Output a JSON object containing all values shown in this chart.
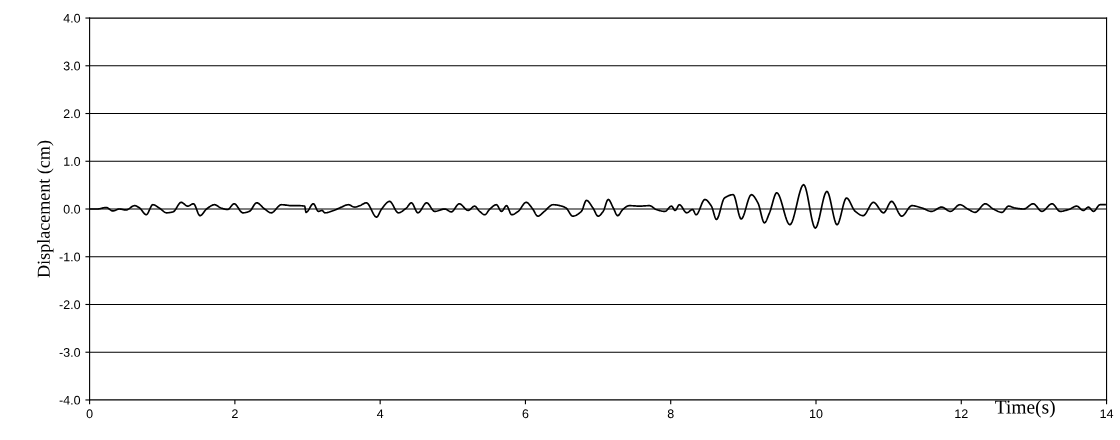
{
  "chart_data": {
    "type": "line",
    "xlabel": "Time(s)",
    "ylabel": "Displacement (cm)",
    "xlim": [
      0,
      14
    ],
    "xticks": [
      0,
      2,
      4,
      6,
      8,
      10,
      12,
      14
    ],
    "ylim": [
      -4,
      4
    ],
    "yticks": [
      {
        "value": -4,
        "label": "-4.0"
      },
      {
        "value": -3,
        "label": "-3.0"
      },
      {
        "value": -2,
        "label": "-2.0"
      },
      {
        "value": -1,
        "label": "-1.0"
      },
      {
        "value": 0,
        "label": "0.0"
      },
      {
        "value": 1,
        "label": "1.0"
      },
      {
        "value": 2,
        "label": "2.0"
      },
      {
        "value": 3,
        "label": "3.0"
      },
      {
        "value": 4,
        "label": "4.0"
      }
    ],
    "grid": "y",
    "marker": "none",
    "line_style": "solid",
    "series": [
      {
        "color": "#000000",
        "x": [
          0.0,
          0.1,
          0.23,
          0.32,
          0.41,
          0.5,
          0.62,
          0.69,
          0.78,
          0.87,
          0.96,
          1.06,
          1.15,
          1.26,
          1.35,
          1.43,
          1.52,
          1.61,
          1.72,
          1.81,
          1.9,
          1.99,
          2.11,
          2.2,
          2.3,
          2.41,
          2.5,
          2.64,
          2.78,
          2.87,
          2.96,
          2.98,
          3.08,
          3.15,
          3.2,
          3.24,
          3.36,
          3.47,
          3.56,
          3.65,
          3.72,
          3.81,
          3.95,
          4.02,
          4.13,
          4.25,
          4.36,
          4.43,
          4.52,
          4.64,
          4.75,
          4.89,
          4.98,
          5.09,
          5.21,
          5.3,
          5.37,
          5.44,
          5.51,
          5.6,
          5.67,
          5.74,
          5.81,
          5.9,
          6.01,
          6.1,
          6.17,
          6.26,
          6.38,
          6.5,
          6.56,
          6.65,
          6.77,
          6.84,
          6.93,
          7.0,
          7.07,
          7.14,
          7.21,
          7.27,
          7.34,
          7.43,
          7.57,
          7.71,
          7.8,
          7.92,
          8.01,
          8.06,
          8.12,
          8.22,
          8.3,
          8.35,
          8.47,
          8.56,
          8.63,
          8.74,
          8.86,
          8.97,
          9.11,
          9.2,
          9.29,
          9.36,
          9.46,
          9.64,
          9.83,
          9.99,
          10.15,
          10.29,
          10.42,
          10.54,
          10.65,
          10.79,
          10.93,
          11.04,
          11.18,
          11.32,
          11.46,
          11.59,
          11.73,
          11.85,
          11.98,
          12.1,
          12.19,
          12.33,
          12.44,
          12.56,
          12.65,
          12.74,
          12.86,
          12.99,
          13.11,
          13.25,
          13.36,
          13.48,
          13.59,
          13.68,
          13.75,
          13.82,
          13.91,
          13.98
        ],
        "values": [
          0.0,
          0.0,
          0.03,
          -0.04,
          0.0,
          -0.02,
          0.07,
          0.02,
          -0.12,
          0.09,
          0.02,
          -0.08,
          -0.06,
          0.14,
          0.06,
          0.11,
          -0.14,
          0.0,
          0.09,
          0.02,
          -0.01,
          0.11,
          -0.08,
          -0.05,
          0.13,
          0.0,
          -0.08,
          0.09,
          0.07,
          0.07,
          0.06,
          -0.07,
          0.11,
          -0.05,
          -0.03,
          -0.08,
          -0.03,
          0.04,
          0.09,
          0.04,
          0.07,
          0.13,
          -0.17,
          0.0,
          0.16,
          -0.08,
          0.02,
          0.13,
          -0.08,
          0.13,
          -0.05,
          0.0,
          -0.06,
          0.11,
          -0.03,
          0.06,
          -0.05,
          -0.12,
          0.0,
          0.09,
          -0.05,
          0.07,
          -0.12,
          -0.05,
          0.14,
          0.0,
          -0.15,
          -0.05,
          0.09,
          0.06,
          0.02,
          -0.15,
          -0.05,
          0.18,
          0.02,
          -0.15,
          -0.05,
          0.2,
          0.02,
          -0.14,
          -0.01,
          0.07,
          0.06,
          0.07,
          -0.01,
          -0.05,
          0.06,
          -0.03,
          0.09,
          -0.08,
          -0.01,
          -0.12,
          0.2,
          0.06,
          -0.22,
          0.23,
          0.3,
          -0.21,
          0.3,
          0.13,
          -0.29,
          -0.08,
          0.34,
          -0.33,
          0.51,
          -0.4,
          0.37,
          -0.33,
          0.23,
          -0.05,
          -0.14,
          0.14,
          -0.08,
          0.16,
          -0.15,
          0.07,
          0.02,
          -0.05,
          0.04,
          -0.05,
          0.09,
          -0.01,
          -0.07,
          0.11,
          0.0,
          -0.07,
          0.06,
          0.02,
          0.0,
          0.11,
          -0.05,
          0.11,
          -0.05,
          -0.01,
          0.06,
          -0.03,
          0.04,
          -0.05,
          0.09,
          0.09
        ]
      }
    ]
  }
}
